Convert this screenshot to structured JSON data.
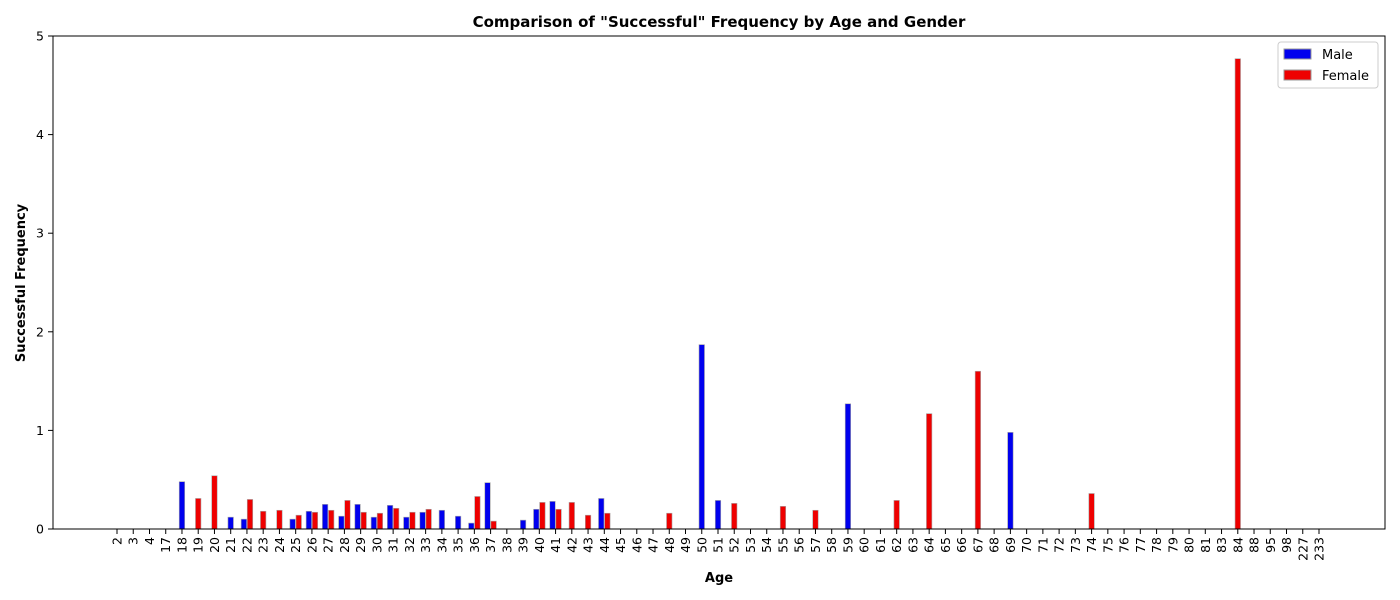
{
  "chart_data": {
    "type": "bar",
    "title": "Comparison of \"Successful\" Frequency by Age and Gender",
    "xlabel": "Age",
    "ylabel": "Successful Frequency",
    "ylim": [
      0,
      5
    ],
    "yticks": [
      "0",
      "1",
      "2",
      "3",
      "4",
      "5"
    ],
    "grid": false,
    "legend_position": "top-right",
    "categories": [
      "2",
      "3",
      "4",
      "17",
      "18",
      "19",
      "20",
      "21",
      "22",
      "23",
      "24",
      "25",
      "26",
      "27",
      "28",
      "29",
      "30",
      "31",
      "32",
      "33",
      "34",
      "35",
      "36",
      "37",
      "38",
      "39",
      "40",
      "41",
      "42",
      "43",
      "44",
      "45",
      "46",
      "47",
      "48",
      "49",
      "50",
      "51",
      "52",
      "53",
      "54",
      "55",
      "56",
      "57",
      "58",
      "59",
      "60",
      "61",
      "62",
      "63",
      "64",
      "65",
      "66",
      "67",
      "68",
      "69",
      "70",
      "71",
      "72",
      "73",
      "74",
      "75",
      "76",
      "77",
      "78",
      "79",
      "80",
      "81",
      "83",
      "84",
      "88",
      "95",
      "98",
      "227",
      "233"
    ],
    "series": [
      {
        "name": "Male",
        "color": "#0000ee",
        "values": [
          0,
          0,
          0,
          0,
          0.48,
          0,
          0,
          0.12,
          0.1,
          0,
          0,
          0.1,
          0.18,
          0.25,
          0.13,
          0.25,
          0.12,
          0.24,
          0.12,
          0.17,
          0.19,
          0.13,
          0.06,
          0.47,
          0,
          0.09,
          0.2,
          0.28,
          0,
          0,
          0.31,
          0,
          0,
          0,
          0,
          0,
          1.87,
          0.29,
          0,
          0,
          0,
          0,
          0,
          0,
          0,
          1.27,
          0,
          0,
          0,
          0,
          0,
          0,
          0,
          0,
          0,
          0.98,
          0,
          0,
          0,
          0,
          0,
          0,
          0,
          0,
          0,
          0,
          0,
          0,
          0,
          0,
          0,
          0,
          0,
          0,
          0
        ]
      },
      {
        "name": "Female",
        "color": "#ee0000",
        "values": [
          0,
          0,
          0,
          0,
          0,
          0.31,
          0.54,
          0,
          0.3,
          0.18,
          0.19,
          0.14,
          0.17,
          0.19,
          0.29,
          0.17,
          0.16,
          0.21,
          0.17,
          0.2,
          0,
          0,
          0.33,
          0.08,
          0,
          0,
          0.27,
          0.2,
          0.27,
          0.14,
          0.16,
          0,
          0,
          0,
          0.16,
          0,
          0,
          0,
          0.26,
          0,
          0,
          0.23,
          0,
          0.19,
          0,
          0,
          0,
          0,
          0.29,
          0,
          1.17,
          0,
          0,
          1.6,
          0,
          0,
          0,
          0,
          0,
          0,
          0.36,
          0,
          0,
          0,
          0,
          0,
          0,
          0,
          0,
          4.77,
          0,
          0,
          0,
          0,
          0
        ]
      }
    ]
  }
}
